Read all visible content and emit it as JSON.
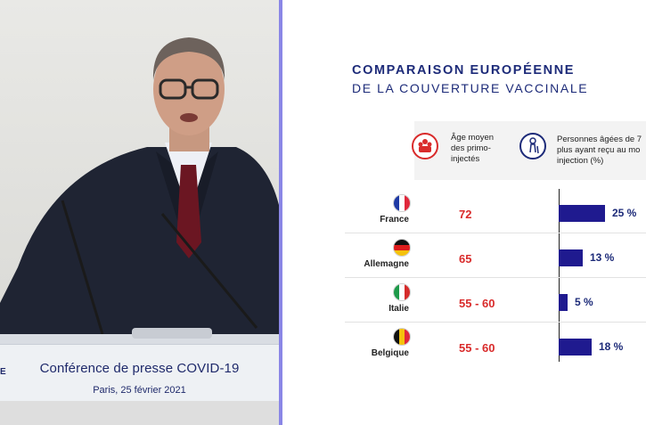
{
  "podium": {
    "title": "Conférence de presse COVID-19",
    "subtitle": "Paris, 25 février 2021",
    "edge_text": "E"
  },
  "slide": {
    "title_line1": "COMPARAISON EUROPÉENNE",
    "title_line2": "DE LA COUVERTURE VACCINALE",
    "col_age": {
      "line1": "Âge moyen",
      "line2": "des primo-",
      "line3": "injectés",
      "icon": "crowd-icon"
    },
    "col_pct": {
      "line1": "Personnes âgées de 7",
      "line2": "plus ayant reçu au mo",
      "line3": "injection (%)",
      "icon": "elderly-person-icon"
    },
    "colors": {
      "title": "#1d2b79",
      "age_value": "#d92b2b",
      "bar": "#1f1a8f"
    }
  },
  "chart_data": {
    "type": "table",
    "title": "COMPARAISON EUROPÉENNE DE LA COUVERTURE VACCINALE",
    "columns": [
      "Âge moyen des primo-injectés",
      "Personnes âgées de 7… plus ayant reçu au mo… injection (%)"
    ],
    "rows": [
      {
        "country": "France",
        "flag": "france-flag-icon",
        "age": "72",
        "pct": 25,
        "pct_label": "25 %"
      },
      {
        "country": "Allemagne",
        "flag": "germany-flag-icon",
        "age": "65",
        "pct": 13,
        "pct_label": "13 %"
      },
      {
        "country": "Italie",
        "flag": "italy-flag-icon",
        "age": "55 - 60",
        "pct": 5,
        "pct_label": "5 %"
      },
      {
        "country": "Belgique",
        "flag": "belgium-flag-icon",
        "age": "55 - 60",
        "pct": 18,
        "pct_label": "18 %"
      }
    ]
  }
}
